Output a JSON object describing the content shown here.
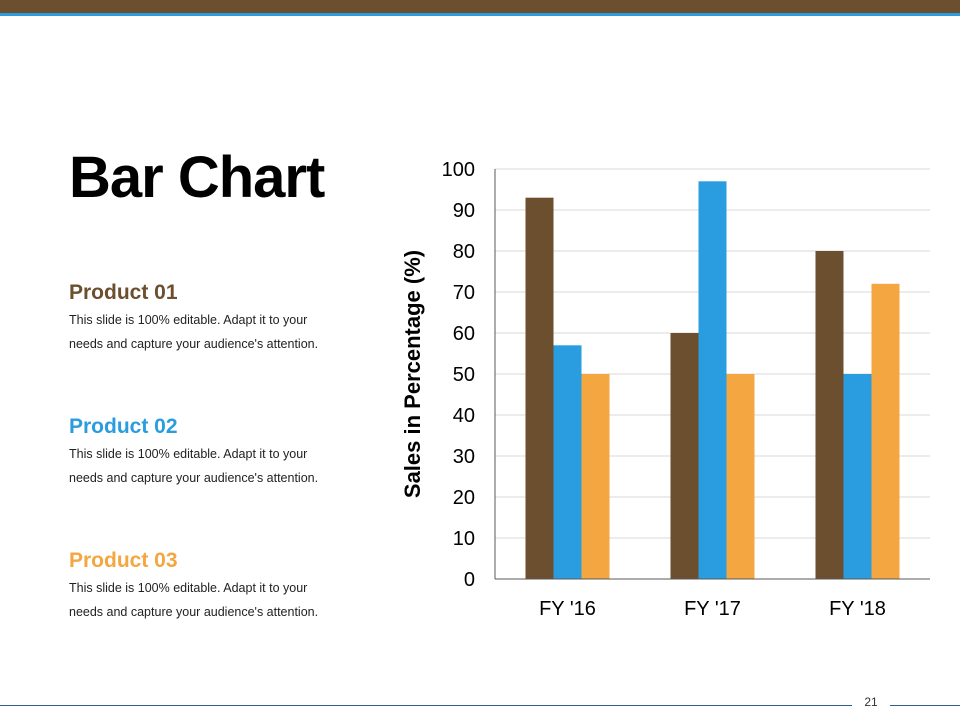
{
  "slide": {
    "title": "Bar Chart",
    "page_number": "21"
  },
  "products": [
    {
      "label": "Product 01",
      "desc": "This slide is 100% editable. Adapt it to your needs and capture your audience's attention.",
      "color": "#6b4f2e"
    },
    {
      "label": "Product 02",
      "desc": "This slide is 100% editable. Adapt it to your needs and capture your audience's attention.",
      "color": "#2a9de0"
    },
    {
      "label": "Product 03",
      "desc": "This slide is 100% editable. Adapt it to your needs and capture your audience's attention.",
      "color": "#f4a640"
    }
  ],
  "chart_data": {
    "type": "bar",
    "title": "",
    "xlabel": "",
    "ylabel": "Sales in Percentage (%)",
    "categories": [
      "FY '16",
      "FY '17",
      "FY '18"
    ],
    "ylim": [
      0,
      100
    ],
    "yticks": [
      0,
      10,
      20,
      30,
      40,
      50,
      60,
      70,
      80,
      90,
      100
    ],
    "grid": true,
    "legend": "none",
    "series": [
      {
        "name": "Product 01",
        "color": "#6b4f2e",
        "values": [
          93,
          60,
          80
        ]
      },
      {
        "name": "Product 02",
        "color": "#2a9de0",
        "values": [
          57,
          97,
          50
        ]
      },
      {
        "name": "Product 03",
        "color": "#f4a640",
        "values": [
          50,
          50,
          72
        ]
      }
    ]
  }
}
